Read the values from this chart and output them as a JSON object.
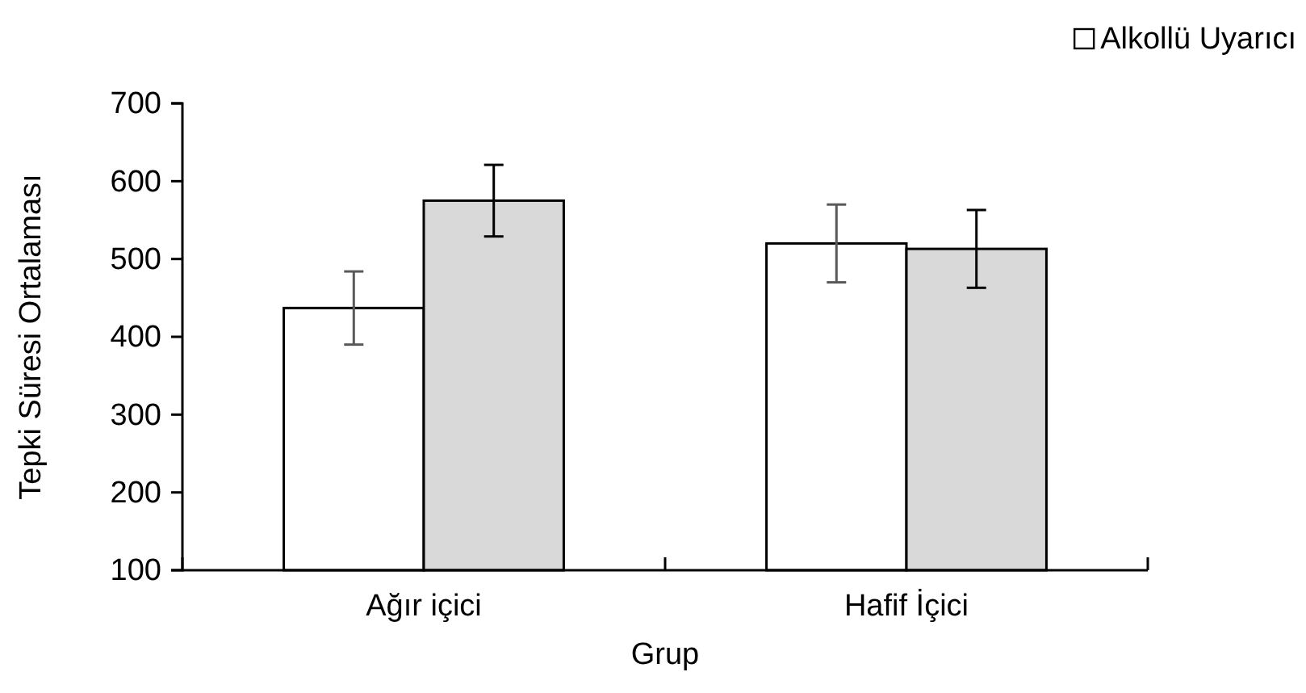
{
  "chart_data": {
    "type": "bar",
    "xlabel": "Grup",
    "ylabel": "Tepki Süresi Ortalaması",
    "categories": [
      "Ağır içici",
      "Hafif İçici"
    ],
    "series": [
      {
        "name": "Alkollü Uyarıcı",
        "color": "#ffffff",
        "values": [
          437,
          520
        ],
        "errors": [
          47,
          50
        ]
      },
      {
        "color": "#d9d9d9",
        "values": [
          575,
          513
        ],
        "errors": [
          46,
          50
        ]
      }
    ],
    "ylim": [
      100,
      700
    ],
    "yticks": [
      100,
      200,
      300,
      400,
      500,
      600,
      700
    ],
    "grid": false,
    "legend": "top right"
  }
}
